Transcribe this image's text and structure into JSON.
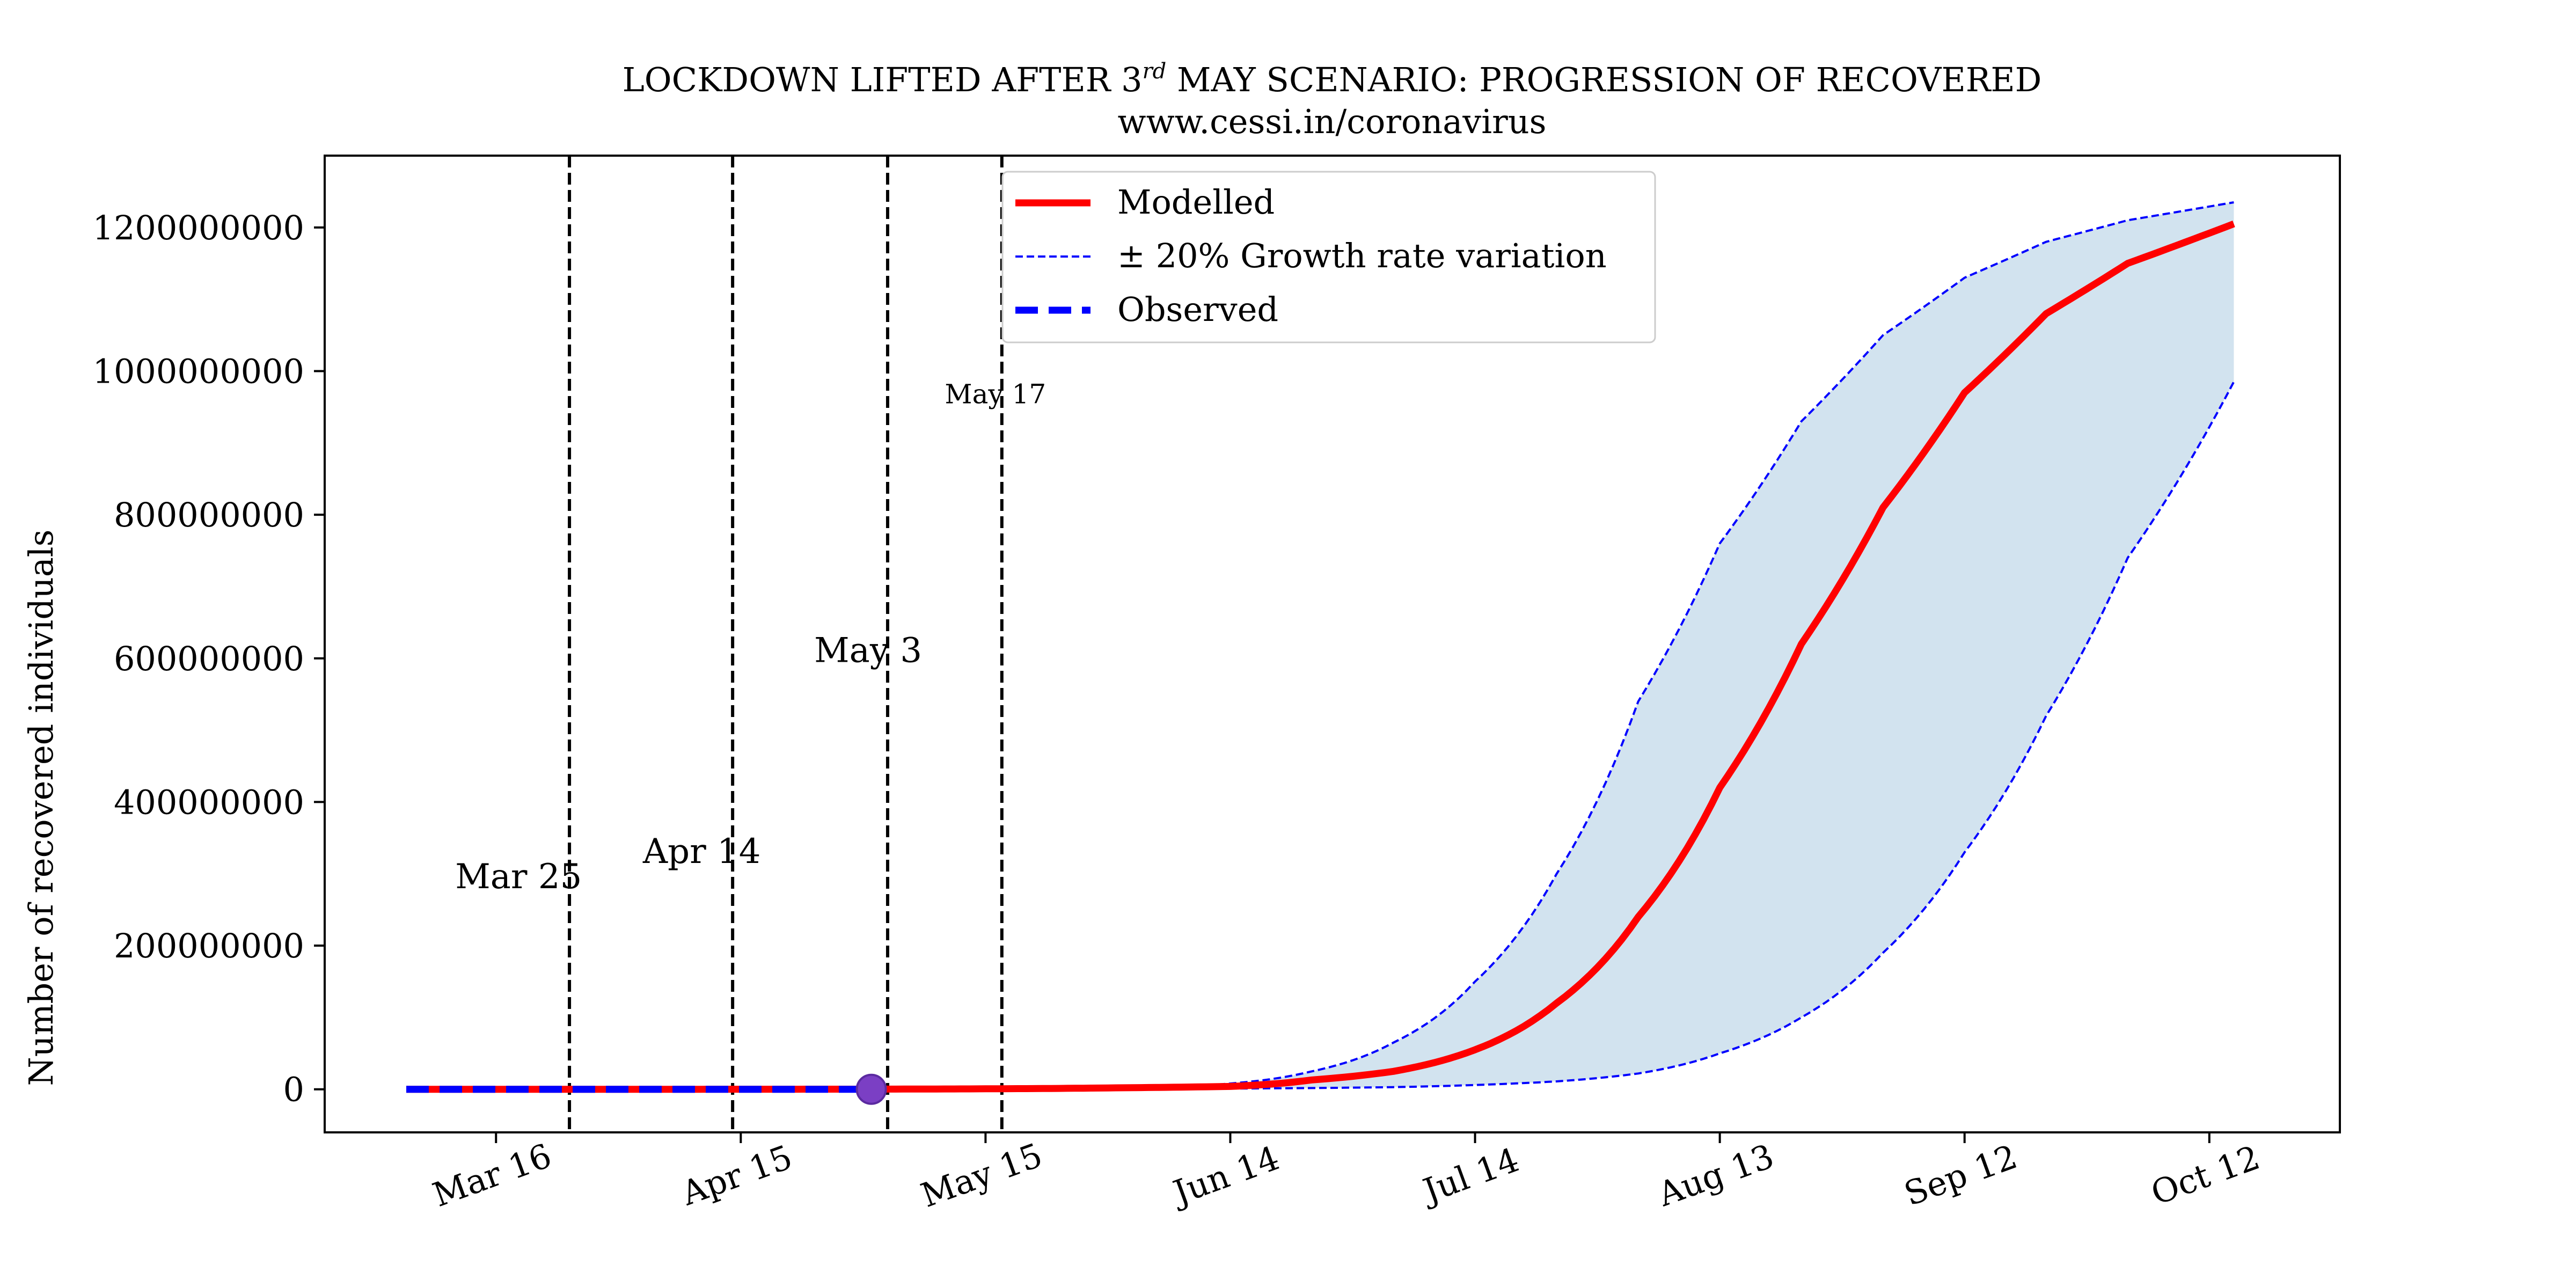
{
  "chart_data": {
    "type": "line",
    "title_prefix": "LOCKDOWN LIFTED AFTER 3",
    "title_superscript": "rd",
    "title_suffix": " MAY SCENARIO: PROGRESSION OF RECOVERED",
    "subtitle": "www.cessi.in/coronavirus",
    "xlabel": "",
    "ylabel": "Number of recovered individuals",
    "x_start": "2020-03-05",
    "x_end": "2020-10-15",
    "xlim": [
      "2020-02-24",
      "2020-10-28"
    ],
    "ylim": [
      -60000000,
      1300000000
    ],
    "x_ticks": [
      {
        "date": "2020-03-16",
        "label": "Mar 16"
      },
      {
        "date": "2020-04-15",
        "label": "Apr 15"
      },
      {
        "date": "2020-05-15",
        "label": "May 15"
      },
      {
        "date": "2020-06-14",
        "label": "Jun 14"
      },
      {
        "date": "2020-07-14",
        "label": "Jul 14"
      },
      {
        "date": "2020-08-13",
        "label": "Aug 13"
      },
      {
        "date": "2020-09-12",
        "label": "Sep 12"
      },
      {
        "date": "2020-10-12",
        "label": "Oct 12"
      }
    ],
    "y_ticks": [
      {
        "value": 0,
        "label": "0"
      },
      {
        "value": 200000000,
        "label": "200000000"
      },
      {
        "value": 400000000,
        "label": "400000000"
      },
      {
        "value": 600000000,
        "label": "600000000"
      },
      {
        "value": 800000000,
        "label": "800000000"
      },
      {
        "value": 1000000000,
        "label": "1000000000"
      },
      {
        "value": 1200000000,
        "label": "1200000000"
      }
    ],
    "series": [
      {
        "name": "Modelled",
        "color": "#ff0000",
        "style": "solid",
        "points": [
          [
            "2020-03-05",
            0
          ],
          [
            "2020-04-01",
            0
          ],
          [
            "2020-05-01",
            200000
          ],
          [
            "2020-05-31",
            2000000
          ],
          [
            "2020-06-14",
            4000000
          ],
          [
            "2020-06-24",
            13000000
          ],
          [
            "2020-07-04",
            25000000
          ],
          [
            "2020-07-14",
            55000000
          ],
          [
            "2020-07-24",
            120000000
          ],
          [
            "2020-08-03",
            240000000
          ],
          [
            "2020-08-13",
            420000000
          ],
          [
            "2020-08-23",
            620000000
          ],
          [
            "2020-09-02",
            810000000
          ],
          [
            "2020-09-12",
            970000000
          ],
          [
            "2020-09-22",
            1080000000
          ],
          [
            "2020-10-02",
            1150000000
          ],
          [
            "2020-10-15",
            1205000000
          ]
        ]
      },
      {
        "name": "± 20% Growth rate variation",
        "color": "#0000ff",
        "style": "dashed",
        "points": [
          [
            "2020-03-05",
            0
          ],
          [
            "2020-04-15",
            0
          ],
          [
            "2020-05-15",
            600000
          ],
          [
            "2020-06-04",
            2500000
          ],
          [
            "2020-06-14",
            8000000
          ],
          [
            "2020-06-24",
            25000000
          ],
          [
            "2020-07-04",
            65000000
          ],
          [
            "2020-07-14",
            150000000
          ],
          [
            "2020-07-24",
            300000000
          ],
          [
            "2020-08-03",
            540000000
          ],
          [
            "2020-08-13",
            760000000
          ],
          [
            "2020-08-23",
            930000000
          ],
          [
            "2020-09-02",
            1050000000
          ],
          [
            "2020-09-12",
            1130000000
          ],
          [
            "2020-09-22",
            1180000000
          ],
          [
            "2020-10-02",
            1210000000
          ],
          [
            "2020-10-15",
            1235000000
          ]
        ]
      },
      {
        "name": "± 20% Growth rate variation lower",
        "color": "#0000ff",
        "style": "dashed",
        "points": [
          [
            "2020-03-05",
            0
          ],
          [
            "2020-05-15",
            0
          ],
          [
            "2020-06-14",
            1000000
          ],
          [
            "2020-07-04",
            3000000
          ],
          [
            "2020-07-14",
            6000000
          ],
          [
            "2020-07-24",
            11000000
          ],
          [
            "2020-08-03",
            22000000
          ],
          [
            "2020-08-13",
            50000000
          ],
          [
            "2020-08-23",
            100000000
          ],
          [
            "2020-09-02",
            190000000
          ],
          [
            "2020-09-12",
            330000000
          ],
          [
            "2020-09-22",
            520000000
          ],
          [
            "2020-10-02",
            740000000
          ],
          [
            "2020-10-15",
            985000000
          ]
        ]
      },
      {
        "name": "Observed",
        "color": "#0000ff",
        "style": "thick-dashed",
        "points": [
          [
            "2020-03-05",
            0
          ],
          [
            "2020-05-01",
            0
          ]
        ]
      }
    ],
    "band_color": "#d2e3ef",
    "marker": {
      "date": "2020-05-01",
      "value": 0,
      "color": "#7b3fc4"
    },
    "vlines": [
      {
        "date": "2020-03-25",
        "label": "Mar 25",
        "label_x": "2020-03-11",
        "label_y": 280000000,
        "small": false
      },
      {
        "date": "2020-04-14",
        "label": "Apr 14",
        "label_x": "2020-04-03",
        "label_y": 315000000,
        "small": false
      },
      {
        "date": "2020-05-03",
        "label": "May 3",
        "label_x": "2020-04-24",
        "label_y": 595000000,
        "small": false
      },
      {
        "date": "2020-05-17",
        "label": "May 17",
        "label_x": "2020-05-10",
        "label_y": 955000000,
        "small": true
      }
    ],
    "legend": {
      "position": "top-center",
      "entries": [
        "Modelled",
        "± 20% Growth rate variation",
        "Observed"
      ]
    },
    "grid": false
  }
}
